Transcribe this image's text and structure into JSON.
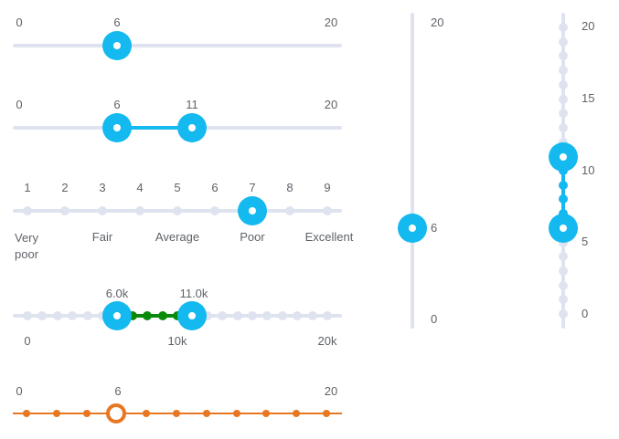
{
  "slider1": {
    "min_label": "0",
    "max_label": "20",
    "value_label": "6",
    "min": 0,
    "max": 20,
    "value": 6
  },
  "slider2": {
    "min_label": "0",
    "max_label": "20",
    "low_label": "6",
    "high_label": "11",
    "min": 0,
    "max": 20,
    "low": 6,
    "high": 11
  },
  "slider3": {
    "numbers": [
      "1",
      "2",
      "3",
      "4",
      "5",
      "6",
      "7",
      "8",
      "9"
    ],
    "value": 7,
    "categories": [
      {
        "text": "Very poor",
        "pos": 1
      },
      {
        "text": "Fair",
        "pos": 3
      },
      {
        "text": "Average",
        "pos": 5
      },
      {
        "text": "Poor",
        "pos": 7
      },
      {
        "text": "Excellent",
        "pos": 9
      }
    ]
  },
  "slider4": {
    "low_label": "6.0k",
    "high_label": "11.0k",
    "axis_labels": [
      "0",
      "10k",
      "20k"
    ],
    "min": 0,
    "max": 20000,
    "low": 6000,
    "high": 11000,
    "step": 1000,
    "range_color": "#0a8a0a"
  },
  "slider5": {
    "min_label": "0",
    "max_label": "20",
    "value_label": "6",
    "min": 0,
    "max": 20,
    "value": 6,
    "step": 2,
    "color": "#e87722"
  },
  "vslider1": {
    "max_label": "20",
    "min_label": "0",
    "value_label": "6",
    "min": 0,
    "max": 20,
    "value": 6
  },
  "vslider2": {
    "labels": [
      "20",
      "15",
      "10",
      "5",
      "0"
    ],
    "min": 0,
    "max": 20,
    "low": 6,
    "high": 11
  },
  "accent_color": "#14b9ef",
  "track_color": "#dfe3f0"
}
